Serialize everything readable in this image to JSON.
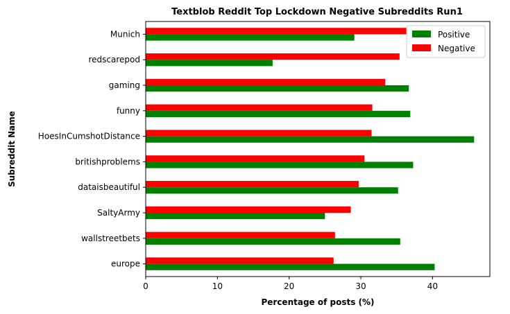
{
  "chart_data": {
    "type": "bar",
    "orientation": "horizontal",
    "title": "Textblob Reddit Top Lockdown Negative Subreddits Run1",
    "xlabel": "Percentage of posts (%)",
    "ylabel": "Subreddit Name",
    "xlim": [
      0,
      48
    ],
    "xticks": [
      0,
      10,
      20,
      30,
      40
    ],
    "grid": false,
    "legend_position": "top-right",
    "categories": [
      "europe",
      "wallstreetbets",
      "SaltyArmy",
      "dataisbeautiful",
      "britishproblems",
      "HoesInCumshotDistance",
      "funny",
      "gaming",
      "redscarepod",
      "Munich"
    ],
    "series": [
      {
        "name": "Positive",
        "color": "#008000",
        "values": [
          40.3,
          35.5,
          25.0,
          35.2,
          37.3,
          45.8,
          36.9,
          36.7,
          17.7,
          29.1
        ]
      },
      {
        "name": "Negative",
        "color": "#ff0000",
        "values": [
          26.2,
          26.4,
          28.6,
          29.7,
          30.5,
          31.5,
          31.6,
          33.4,
          35.4,
          36.5
        ]
      }
    ]
  }
}
